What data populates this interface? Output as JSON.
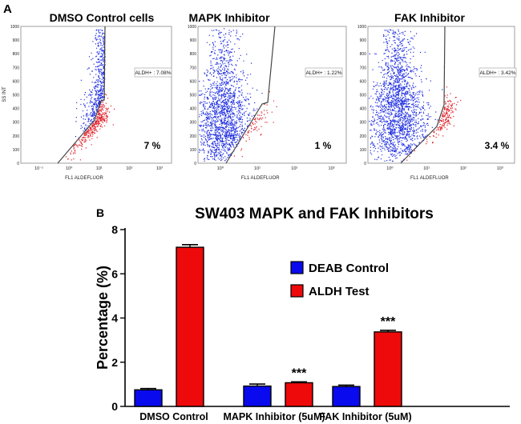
{
  "panel_a": {
    "label": "A",
    "plots": [
      {
        "title": "DMSO Control cells",
        "ylabel": "SS INT",
        "xlabel": "FL1 ALDEFLUOR",
        "gate_label": "ALDH+ : 7.08%",
        "percent_label": "7 %"
      },
      {
        "title": "MAPK Inhibitor",
        "ylabel": "",
        "xlabel": "FL1 ALDEFLUOR",
        "gate_label": "ALDH+ : 1.22%",
        "percent_label": "1 %"
      },
      {
        "title": "FAK Inhibitor",
        "ylabel": "",
        "xlabel": "FL1 ALDEFLUOR",
        "gate_label": "ALDH+ : 3.42%",
        "percent_label": "3.4 %"
      }
    ],
    "y_ticks": [
      "1000",
      "900",
      "800",
      "700",
      "600",
      "500",
      "400",
      "300",
      "200",
      "100",
      "0"
    ],
    "x_ticks": [
      "10⁰",
      "10¹",
      "10²",
      "10³"
    ],
    "x_ticks_first": [
      "10⁻¹",
      "10⁰",
      "10¹",
      "10²",
      "10³"
    ],
    "colors": {
      "neg": "#1f2ee0",
      "pos": "#e0202a",
      "gate": "#444444",
      "axis": "#888888"
    }
  },
  "panel_b": {
    "label": "B"
  },
  "chart_data": {
    "type": "bar",
    "title": "SW403 MAPK and FAK Inhibitors",
    "ylabel": "Percentage (%)",
    "xlabel": "",
    "ylim": [
      0,
      8
    ],
    "y_ticks": [
      0,
      2,
      4,
      6,
      8
    ],
    "categories": [
      "DMSO Control",
      "MAPK Inhibitor (5uM)",
      "FAK Inhibitor (5uM)"
    ],
    "series": [
      {
        "name": "DEAB Control",
        "color": "#0a0aee",
        "values": [
          0.75,
          0.92,
          0.9
        ],
        "errors": [
          0.06,
          0.09,
          0.06
        ]
      },
      {
        "name": "ALDH Test",
        "color": "#ee0a0a",
        "values": [
          7.2,
          1.07,
          3.37
        ],
        "errors": [
          0.12,
          0.04,
          0.07
        ]
      }
    ],
    "annotations": [
      {
        "series": "ALDH Test",
        "category": "MAPK Inhibitor (5uM)",
        "text": "***"
      },
      {
        "series": "ALDH Test",
        "category": "FAK Inhibitor (5uM)",
        "text": "***"
      }
    ],
    "legend_position": "top-right"
  }
}
